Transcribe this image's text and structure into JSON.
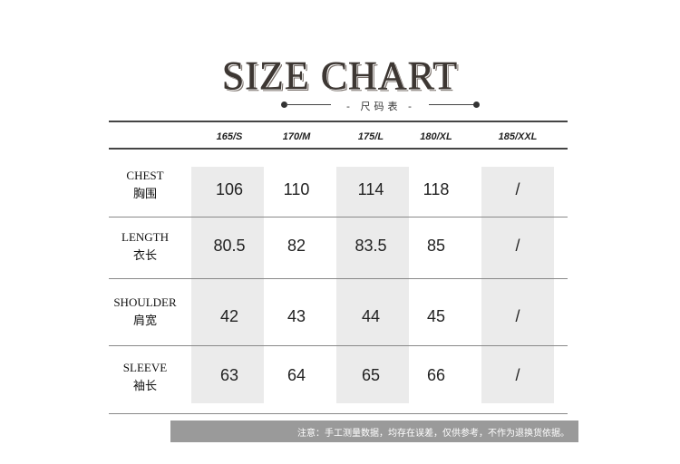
{
  "title": "SIZE CHART",
  "subtitle": "- 尺码表 -",
  "sizes": [
    "165/S",
    "170/M",
    "175/L",
    "180/XL",
    "185/XXL"
  ],
  "rows": [
    {
      "en": "CHEST",
      "zh": "胸围",
      "values": [
        "106",
        "110",
        "114",
        "118",
        "/"
      ]
    },
    {
      "en": "LENGTH",
      "zh": "衣长",
      "values": [
        "80.5",
        "82",
        "83.5",
        "85",
        "/"
      ]
    },
    {
      "en": "SHOULDER",
      "zh": "肩宽",
      "values": [
        "42",
        "43",
        "44",
        "45",
        "/"
      ]
    },
    {
      "en": "SLEEVE",
      "zh": "袖长",
      "values": [
        "63",
        "64",
        "65",
        "66",
        "/"
      ]
    }
  ],
  "note": "注意：手工测量数据，均存在误差，仅供参考，不作为退换货依据。",
  "colors": {
    "shade": "#ebebeb",
    "footer": "#9a9a9a"
  }
}
